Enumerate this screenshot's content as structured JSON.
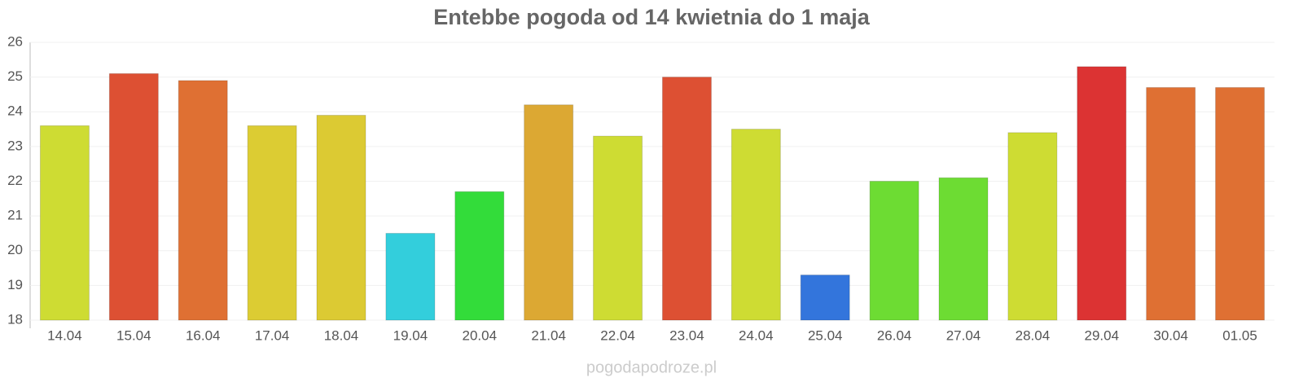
{
  "chart_data": {
    "type": "bar",
    "title": "Entebbe pogoda od 14 kwietnia do 1 maja",
    "categories": [
      "14.04",
      "15.04",
      "16.04",
      "17.04",
      "18.04",
      "19.04",
      "20.04",
      "21.04",
      "22.04",
      "23.04",
      "24.04",
      "25.04",
      "26.04",
      "27.04",
      "28.04",
      "29.04",
      "30.04",
      "01.05"
    ],
    "values": [
      23.6,
      25.1,
      24.9,
      23.6,
      23.9,
      20.5,
      21.7,
      24.2,
      23.3,
      25.0,
      23.5,
      19.3,
      22.0,
      22.1,
      23.4,
      25.3,
      24.7,
      24.7
    ],
    "colors": [
      "#cedc33",
      "#dd5033",
      "#df7033",
      "#dccc33",
      "#dcca33",
      "#33cedc",
      "#33dc3a",
      "#dca833",
      "#cedc33",
      "#dd5033",
      "#cedc33",
      "#3375dc",
      "#6ddc33",
      "#6ddc33",
      "#cedc33",
      "#dc3333",
      "#df7033",
      "#df7033"
    ],
    "ylim": [
      18,
      26
    ],
    "yticks": [
      18,
      19,
      20,
      21,
      22,
      23,
      24,
      25,
      26
    ],
    "grid": true,
    "source": "pogodapodroze.pl"
  }
}
